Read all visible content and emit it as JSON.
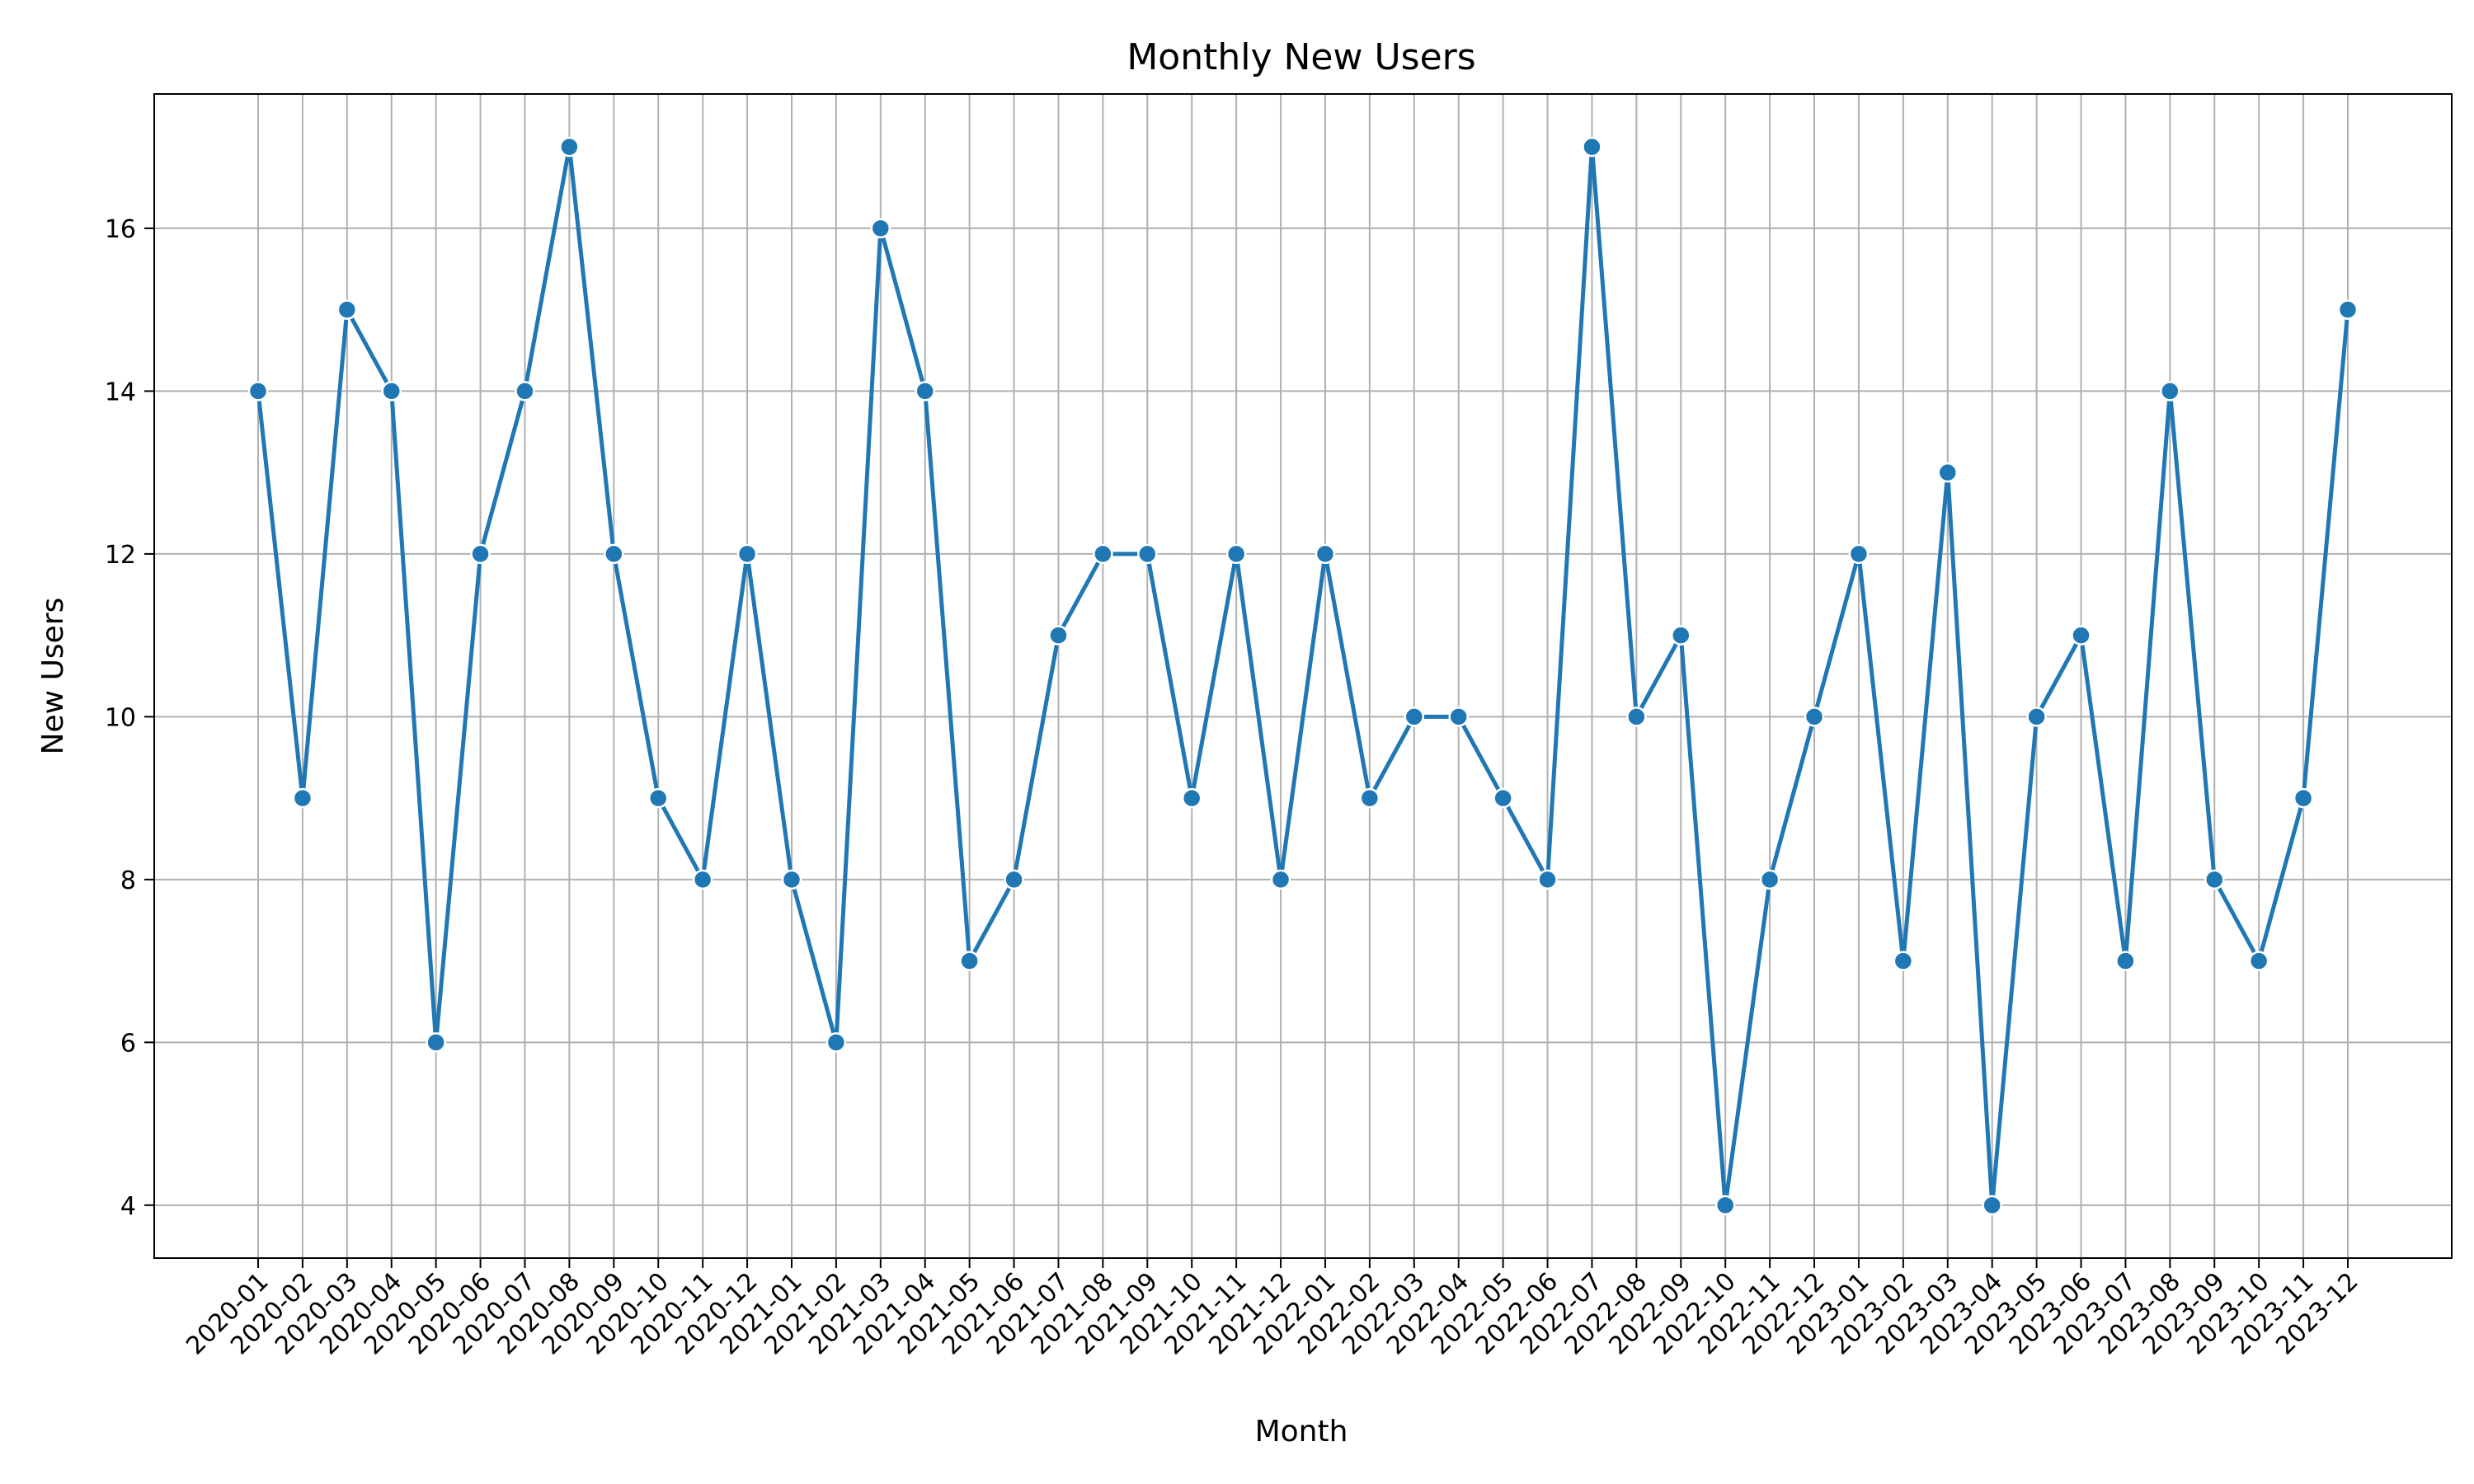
{
  "chart_data": {
    "type": "line",
    "title": "Monthly New Users",
    "xlabel": "Month",
    "ylabel": "New Users",
    "ylim": [
      3.35,
      17.65
    ],
    "yticks": [
      4,
      6,
      8,
      10,
      12,
      14,
      16
    ],
    "grid": true,
    "series_color": "#1f77b4",
    "categories": [
      "2020-01",
      "2020-02",
      "2020-03",
      "2020-04",
      "2020-05",
      "2020-06",
      "2020-07",
      "2020-08",
      "2020-09",
      "2020-10",
      "2020-11",
      "2020-12",
      "2021-01",
      "2021-02",
      "2021-03",
      "2021-04",
      "2021-05",
      "2021-06",
      "2021-07",
      "2021-08",
      "2021-09",
      "2021-10",
      "2021-11",
      "2021-12",
      "2022-01",
      "2022-02",
      "2022-03",
      "2022-04",
      "2022-05",
      "2022-06",
      "2022-07",
      "2022-08",
      "2022-09",
      "2022-10",
      "2022-11",
      "2022-12",
      "2023-01",
      "2023-02",
      "2023-03",
      "2023-04",
      "2023-05",
      "2023-06",
      "2023-07",
      "2023-08",
      "2023-09",
      "2023-10",
      "2023-11",
      "2023-12"
    ],
    "series": [
      {
        "name": "New Users",
        "values": [
          14,
          9,
          15,
          14,
          6,
          12,
          14,
          17,
          12,
          9,
          8,
          12,
          8,
          6,
          16,
          14,
          7,
          8,
          11,
          12,
          12,
          9,
          12,
          8,
          12,
          9,
          10,
          10,
          9,
          8,
          17,
          10,
          11,
          4,
          8,
          10,
          12,
          7,
          13,
          4,
          10,
          11,
          7,
          14,
          8,
          7,
          9,
          15
        ]
      }
    ]
  }
}
